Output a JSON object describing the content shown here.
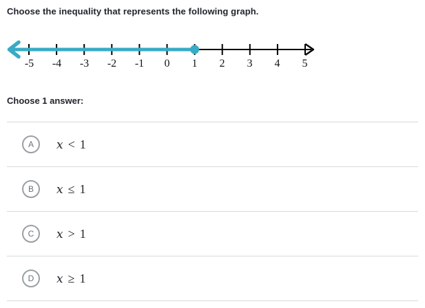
{
  "colors": {
    "ray": "#38abc5",
    "axis": "#000000",
    "text_dark": "#21242c",
    "divider": "#d8d9da",
    "radio_border": "#98a0a6",
    "radio_letter": "#6b717a"
  },
  "question": {
    "title": "Choose the inequality that represents the following graph."
  },
  "number_line": {
    "min": -5,
    "max": 5,
    "tick_labels": [
      "-5",
      "-4",
      "-3",
      "-2",
      "-1",
      "0",
      "1",
      "2",
      "3",
      "4",
      "5"
    ],
    "ray": {
      "direction": "left",
      "endpoint": "1",
      "endpoint_style": "closed-dot"
    }
  },
  "answers": {
    "prompt": "Choose 1 answer:",
    "options": [
      {
        "letter": "A",
        "variable": "x",
        "relation": "<",
        "value": "1"
      },
      {
        "letter": "B",
        "variable": "x",
        "relation": "≤",
        "value": "1"
      },
      {
        "letter": "C",
        "variable": "x",
        "relation": ">",
        "value": "1"
      },
      {
        "letter": "D",
        "variable": "x",
        "relation": "≥",
        "value": "1"
      }
    ]
  }
}
